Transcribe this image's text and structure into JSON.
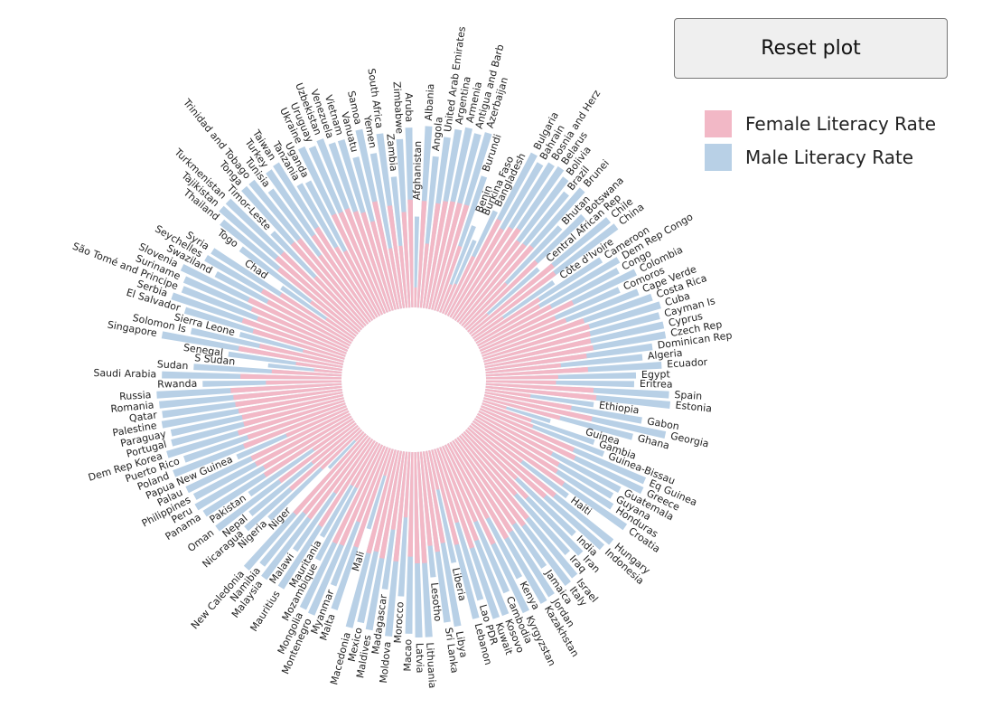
{
  "controls": {
    "reset_label": "Reset plot"
  },
  "colors": {
    "female": "#f2b8c6",
    "male": "#b8d0e6"
  },
  "chart_data": {
    "type": "bar",
    "layout": "radial",
    "title": "",
    "legend_position": "top-right",
    "series": [
      {
        "name": "Female Literacy Rate",
        "color": "#f2b8c6",
        "key": "female"
      },
      {
        "name": "Male Literacy Rate",
        "color": "#b8d0e6",
        "key": "male"
      }
    ],
    "ylim": [
      0,
      100
    ],
    "countries": [
      {
        "name": "Afghanistan",
        "female": 18,
        "male": 49
      },
      {
        "name": "Albania",
        "female": 96,
        "male": 98
      },
      {
        "name": "Angola",
        "female": 58,
        "male": 82
      },
      {
        "name": "United Arab Emirates",
        "female": 95,
        "male": 93
      },
      {
        "name": "Argentina",
        "female": 98,
        "male": 98
      },
      {
        "name": "Armenia",
        "female": 99,
        "male": 100
      },
      {
        "name": "Antigua and Barb",
        "female": 99,
        "male": 98
      },
      {
        "name": "Azerbaijan",
        "female": 99,
        "male": 100
      },
      {
        "name": "Burundi",
        "female": 62,
        "male": 77
      },
      {
        "name": "Benin",
        "female": 27,
        "male": 50
      },
      {
        "name": "Burkina Faso",
        "female": 29,
        "male": 43
      },
      {
        "name": "Bangladesh",
        "female": 58,
        "male": 62
      },
      {
        "name": "Bulgaria",
        "female": 98,
        "male": 99
      },
      {
        "name": "Bahrain",
        "female": 92,
        "male": 96
      },
      {
        "name": "Bosnia and Herz",
        "female": 97,
        "male": 99
      },
      {
        "name": "Belarus",
        "female": 100,
        "male": 100
      },
      {
        "name": "Bolivia",
        "female": 91,
        "male": 97
      },
      {
        "name": "Brazil",
        "female": 92,
        "male": 91
      },
      {
        "name": "Brunei",
        "female": 95,
        "male": 98
      },
      {
        "name": "Bhutan",
        "female": 55,
        "male": 75
      },
      {
        "name": "Botswana",
        "female": 88,
        "male": 88
      },
      {
        "name": "Central African Rep",
        "female": 24,
        "male": 51
      },
      {
        "name": "Chile",
        "female": 97,
        "male": 97
      },
      {
        "name": "China",
        "female": 94,
        "male": 98
      },
      {
        "name": "Côte d'Ivoire",
        "female": 33,
        "male": 53
      },
      {
        "name": "Cameroon",
        "female": 69,
        "male": 81
      },
      {
        "name": "Dem Rep Congo",
        "female": 66,
        "male": 89
      },
      {
        "name": "Congo",
        "female": 75,
        "male": 86
      },
      {
        "name": "Colombia",
        "female": 94,
        "male": 94
      },
      {
        "name": "Comoros",
        "female": 74,
        "male": 82
      },
      {
        "name": "Cape Verde",
        "female": 82,
        "male": 91
      },
      {
        "name": "Costa Rica",
        "female": 97,
        "male": 97
      },
      {
        "name": "Cuba",
        "female": 100,
        "male": 100
      },
      {
        "name": "Cayman Is",
        "female": 99,
        "male": 98
      },
      {
        "name": "Cyprus",
        "female": 98,
        "male": 99
      },
      {
        "name": "Czech Rep",
        "female": 99,
        "male": 99
      },
      {
        "name": "Dominican Rep",
        "female": 92,
        "male": 91
      },
      {
        "name": "Algeria",
        "female": 68,
        "male": 85
      },
      {
        "name": "Ecuador",
        "female": 92,
        "male": 95
      },
      {
        "name": "Egypt",
        "female": 65,
        "male": 81
      },
      {
        "name": "Eritrea",
        "female": 63,
        "male": 80
      },
      {
        "name": "Spain",
        "female": 97,
        "male": 99
      },
      {
        "name": "Estonia",
        "female": 100,
        "male": 100
      },
      {
        "name": "Ethiopia",
        "female": 41,
        "male": 59
      },
      {
        "name": "Gabon",
        "female": 79,
        "male": 86
      },
      {
        "name": "Georgia",
        "female": 99,
        "male": 100
      },
      {
        "name": "Ghana",
        "female": 71,
        "male": 83
      },
      {
        "name": "Guinea",
        "female": 22,
        "male": 38
      },
      {
        "name": "Gambia",
        "female": 47,
        "male": 64
      },
      {
        "name": "Guinea-Bissau",
        "female": 50,
        "male": 71
      },
      {
        "name": "Eq Guinea",
        "female": 92,
        "male": 97
      },
      {
        "name": "Greece",
        "female": 96,
        "male": 98
      },
      {
        "name": "Guatemala",
        "female": 76,
        "male": 87
      },
      {
        "name": "Guyana",
        "female": 86,
        "male": 85
      },
      {
        "name": "Honduras",
        "female": 88,
        "male": 88
      },
      {
        "name": "Croatia",
        "female": 99,
        "male": 100
      },
      {
        "name": "Haiti",
        "female": 57,
        "male": 65
      },
      {
        "name": "Hungary",
        "female": 99,
        "male": 99
      },
      {
        "name": "Indonesia",
        "female": 93,
        "male": 97
      },
      {
        "name": "India",
        "female": 63,
        "male": 81
      },
      {
        "name": "Iran",
        "female": 82,
        "male": 91
      },
      {
        "name": "Iraq",
        "female": 73,
        "male": 86
      },
      {
        "name": "Israel",
        "female": 96,
        "male": 98
      },
      {
        "name": "Italy",
        "female": 99,
        "male": 99
      },
      {
        "name": "Jamaica",
        "female": 93,
        "male": 84
      },
      {
        "name": "Jordan",
        "female": 97,
        "male": 99
      },
      {
        "name": "Kazakhstan",
        "female": 100,
        "male": 100
      },
      {
        "name": "Kenya",
        "female": 76,
        "male": 82
      },
      {
        "name": "Kyrgyzstan",
        "female": 99,
        "male": 100
      },
      {
        "name": "Cambodia",
        "female": 74,
        "male": 86
      },
      {
        "name": "Kosovo",
        "female": 90,
        "male": 97
      },
      {
        "name": "Kuwait",
        "female": 95,
        "male": 97
      },
      {
        "name": "Lao PDR",
        "female": 69,
        "male": 85
      },
      {
        "name": "Lebanon",
        "female": 88,
        "male": 94
      },
      {
        "name": "Liberia",
        "female": 36,
        "male": 62
      },
      {
        "name": "Libya",
        "female": 84,
        "male": 96
      },
      {
        "name": "Sri Lanka",
        "female": 91,
        "male": 93
      },
      {
        "name": "Lesotho",
        "female": 85,
        "male": 68
      },
      {
        "name": "Lithuania",
        "female": 100,
        "male": 100
      },
      {
        "name": "Latvia",
        "female": 100,
        "male": 100
      },
      {
        "name": "Macao",
        "female": 94,
        "male": 98
      },
      {
        "name": "Morocco",
        "female": 59,
        "male": 78
      },
      {
        "name": "Moldova",
        "female": 99,
        "male": 100
      },
      {
        "name": "Madagascar",
        "female": 71,
        "male": 75
      },
      {
        "name": "Maldives",
        "female": 98,
        "male": 98
      },
      {
        "name": "Mexico",
        "female": 93,
        "male": 95
      },
      {
        "name": "Macedonia",
        "female": 96,
        "male": 99
      },
      {
        "name": "Mali",
        "female": 25,
        "male": 45
      },
      {
        "name": "Malta",
        "female": 94,
        "male": 92
      },
      {
        "name": "Myanmar",
        "female": 72,
        "male": 80
      },
      {
        "name": "Montenegro",
        "female": 97,
        "male": 99
      },
      {
        "name": "Mongolia",
        "female": 98,
        "male": 98
      },
      {
        "name": "Mozambique",
        "female": 45,
        "male": 71
      },
      {
        "name": "Mauritania",
        "female": 45,
        "male": 59
      },
      {
        "name": "Mauritius",
        "female": 91,
        "male": 94
      },
      {
        "name": "Malawi",
        "female": 59,
        "male": 73
      },
      {
        "name": "Malaysia",
        "female": 91,
        "male": 95
      },
      {
        "name": "Namibia",
        "female": 90,
        "male": 90
      },
      {
        "name": "New Caledonia",
        "female": 96,
        "male": 97
      },
      {
        "name": "Niger",
        "female": 11,
        "male": 27
      },
      {
        "name": "Nigeria",
        "female": 50,
        "male": 69
      },
      {
        "name": "Nicaragua",
        "female": 83,
        "male": 82
      },
      {
        "name": "Nepal",
        "female": 53,
        "male": 75
      },
      {
        "name": "Oman",
        "female": 86,
        "male": 94
      },
      {
        "name": "Pakistan",
        "female": 45,
        "male": 69
      },
      {
        "name": "Panama",
        "female": 94,
        "male": 95
      },
      {
        "name": "Peru",
        "female": 91,
        "male": 97
      },
      {
        "name": "Philippines",
        "female": 96,
        "male": 95
      },
      {
        "name": "Palau",
        "female": 97,
        "male": 97
      },
      {
        "name": "Papua New Guinea",
        "female": 60,
        "male": 65
      },
      {
        "name": "Poland",
        "female": 99,
        "male": 100
      },
      {
        "name": "Puerto Rico",
        "female": 93,
        "male": 92
      },
      {
        "name": "Dem Rep Korea",
        "female": 100,
        "male": 100
      },
      {
        "name": "Portugal",
        "female": 93,
        "male": 96
      },
      {
        "name": "Paraguay",
        "female": 93,
        "male": 95
      },
      {
        "name": "Palestine",
        "female": 95,
        "male": 99
      },
      {
        "name": "Qatar",
        "female": 97,
        "male": 98
      },
      {
        "name": "Romania",
        "female": 98,
        "male": 99
      },
      {
        "name": "Russia",
        "female": 100,
        "male": 100
      },
      {
        "name": "Rwanda",
        "female": 68,
        "male": 75
      },
      {
        "name": "Saudi Arabia",
        "female": 91,
        "male": 97
      },
      {
        "name": "Sudan",
        "female": 63,
        "male": 80
      },
      {
        "name": "S Sudan",
        "female": 25,
        "male": 40
      },
      {
        "name": "Senegal",
        "female": 42,
        "male": 62
      },
      {
        "name": "Singapore",
        "female": 95,
        "male": 99
      },
      {
        "name": "Solomon Is",
        "female": 77,
        "male": 84
      },
      {
        "name": "Sierra Leone",
        "female": 38,
        "male": 58
      },
      {
        "name": "El Salvador",
        "female": 86,
        "male": 90
      },
      {
        "name": "Serbia",
        "female": 98,
        "male": 99
      },
      {
        "name": "São Tomé and Principe",
        "female": 86,
        "male": 95
      },
      {
        "name": "Suriname",
        "female": 94,
        "male": 96
      },
      {
        "name": "Slovenia",
        "female": 100,
        "male": 100
      },
      {
        "name": "Swaziland",
        "female": 84,
        "male": 82
      },
      {
        "name": "Seychelles",
        "female": 93,
        "male": 91
      },
      {
        "name": "Syria",
        "female": 77,
        "male": 90
      },
      {
        "name": "Chad",
        "female": 31,
        "male": 48
      },
      {
        "name": "Togo",
        "female": 51,
        "male": 78
      },
      {
        "name": "Thailand",
        "female": 92,
        "male": 95
      },
      {
        "name": "Tajikistan",
        "female": 100,
        "male": 100
      },
      {
        "name": "Turkmenistan",
        "female": 99,
        "male": 100
      },
      {
        "name": "Timor-Leste",
        "female": 63,
        "male": 71
      },
      {
        "name": "Tonga",
        "female": 99,
        "male": 99
      },
      {
        "name": "Trinidad and Tobago",
        "female": 98,
        "male": 99
      },
      {
        "name": "Tunisia",
        "female": 75,
        "male": 89
      },
      {
        "name": "Turkey",
        "female": 93,
        "male": 98
      },
      {
        "name": "Taiwan",
        "female": 97,
        "male": 99
      },
      {
        "name": "Tanzania",
        "female": 73,
        "male": 83
      },
      {
        "name": "Uganda",
        "female": 66,
        "male": 82
      },
      {
        "name": "Ukraine",
        "female": 100,
        "male": 100
      },
      {
        "name": "Uruguay",
        "female": 99,
        "male": 98
      },
      {
        "name": "Uzbekistan",
        "female": 100,
        "male": 100
      },
      {
        "name": "Venezuela",
        "female": 95,
        "male": 96
      },
      {
        "name": "Vietnam",
        "female": 92,
        "male": 96
      },
      {
        "name": "Vanuatu",
        "female": 82,
        "male": 85
      },
      {
        "name": "Samoa",
        "female": 99,
        "male": 99
      },
      {
        "name": "Yemen",
        "female": 55,
        "male": 85
      },
      {
        "name": "South Africa",
        "female": 93,
        "male": 95
      },
      {
        "name": "Zambia",
        "female": 56,
        "male": 71
      },
      {
        "name": "Zimbabwe",
        "female": 86,
        "male": 91
      },
      {
        "name": "Aruba",
        "female": 97,
        "male": 97
      }
    ]
  }
}
